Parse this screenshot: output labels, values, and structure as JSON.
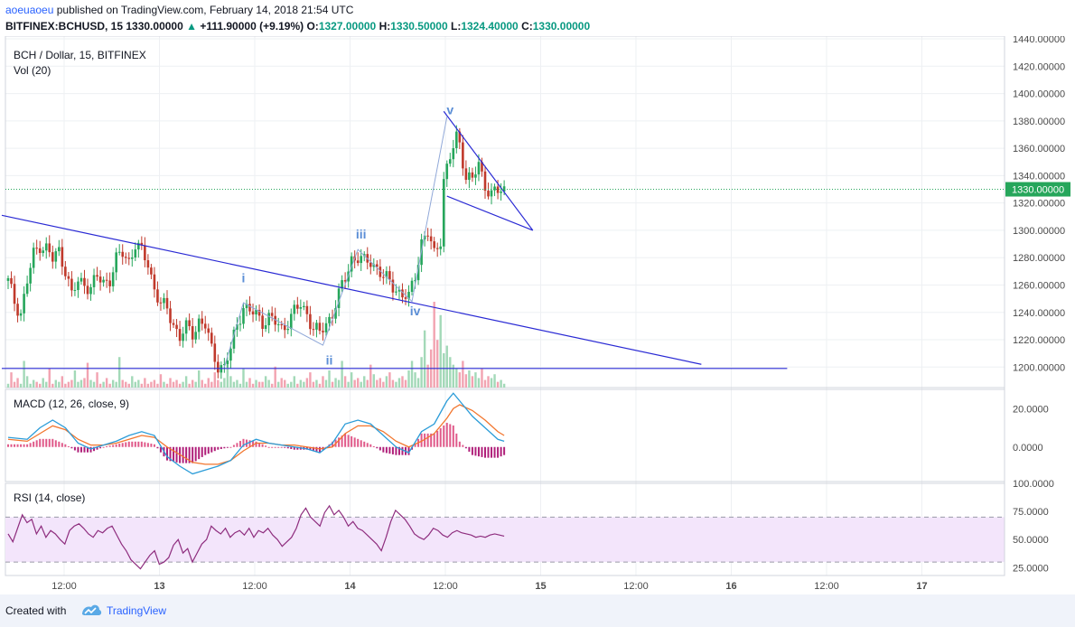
{
  "header": {
    "author": "aoeuaoeu",
    "published_text": "published on TradingView.com, February 14, 2018 21:54 UTC",
    "symbol": "BITFINEX:BCHUSD, 15",
    "last": "1330.00000",
    "change": "+111.90000 (+9.19%)",
    "open_label": "O:",
    "open": "1327.00000",
    "high_label": "H:",
    "high": "1330.50000",
    "low_label": "L:",
    "low": "1324.40000",
    "close_label": "C:",
    "close": "1330.00000"
  },
  "chart_data": {
    "type": "candlestick",
    "title": "BCH / Dollar, 15, BITFINEX",
    "volume_label": "Vol (20)",
    "price_axis": {
      "ticks": [
        "1440.00000",
        "1420.00000",
        "1400.00000",
        "1380.00000",
        "1360.00000",
        "1340.00000",
        "1320.00000",
        "1300.00000",
        "1280.00000",
        "1260.00000",
        "1240.00000",
        "1220.00000",
        "1200.00000"
      ],
      "range": [
        1185,
        1442
      ],
      "last_price_label": "1330.00000"
    },
    "x_axis": {
      "ticks": [
        "12:00",
        "13",
        "12:00",
        "14",
        "12:00",
        "15",
        "12:00",
        "16",
        "12:00",
        "17"
      ]
    },
    "price_path": [
      [
        0,
        1262
      ],
      [
        2,
        1248
      ],
      [
        4,
        1240
      ],
      [
        6,
        1262
      ],
      [
        8,
        1282
      ],
      [
        10,
        1290
      ],
      [
        12,
        1287
      ],
      [
        14,
        1278
      ],
      [
        16,
        1285
      ],
      [
        18,
        1272
      ],
      [
        20,
        1252
      ],
      [
        22,
        1262
      ],
      [
        24,
        1262
      ],
      [
        26,
        1258
      ],
      [
        28,
        1265
      ],
      [
        30,
        1262
      ],
      [
        32,
        1265
      ],
      [
        34,
        1278
      ],
      [
        36,
        1283
      ],
      [
        38,
        1278
      ],
      [
        40,
        1290
      ],
      [
        42,
        1283
      ],
      [
        44,
        1276
      ],
      [
        46,
        1258
      ],
      [
        48,
        1245
      ],
      [
        50,
        1242
      ],
      [
        52,
        1232
      ],
      [
        54,
        1222
      ],
      [
        56,
        1228
      ],
      [
        58,
        1225
      ],
      [
        60,
        1234
      ],
      [
        62,
        1230
      ],
      [
        64,
        1212
      ],
      [
        66,
        1202
      ],
      [
        68,
        1200
      ],
      [
        70,
        1212
      ],
      [
        72,
        1232
      ],
      [
        74,
        1245
      ],
      [
        76,
        1240
      ],
      [
        78,
        1238
      ],
      [
        80,
        1234
      ],
      [
        82,
        1236
      ],
      [
        84,
        1232
      ],
      [
        86,
        1228
      ],
      [
        88,
        1234
      ],
      [
        90,
        1240
      ],
      [
        92,
        1245
      ],
      [
        94,
        1240
      ],
      [
        96,
        1228
      ],
      [
        98,
        1224
      ],
      [
        100,
        1232
      ],
      [
        102,
        1240
      ],
      [
        104,
        1252
      ],
      [
        106,
        1265
      ],
      [
        108,
        1280
      ],
      [
        110,
        1280
      ],
      [
        112,
        1276
      ],
      [
        114,
        1278
      ],
      [
        116,
        1273
      ],
      [
        118,
        1265
      ],
      [
        120,
        1262
      ],
      [
        122,
        1258
      ],
      [
        124,
        1252
      ],
      [
        126,
        1250
      ],
      [
        128,
        1268
      ],
      [
        130,
        1292
      ],
      [
        132,
        1297
      ],
      [
        134,
        1282
      ],
      [
        136,
        1295
      ],
      [
        137,
        1338
      ],
      [
        139,
        1352
      ],
      [
        141,
        1368
      ],
      [
        142,
        1364
      ],
      [
        144,
        1340
      ],
      [
        146,
        1336
      ],
      [
        148,
        1348
      ],
      [
        150,
        1334
      ],
      [
        152,
        1326
      ],
      [
        154,
        1328
      ],
      [
        156,
        1330
      ]
    ],
    "volume_pattern": [
      2,
      8,
      3,
      5,
      2,
      14,
      6,
      2,
      4,
      3,
      2,
      5,
      3,
      10,
      2,
      4,
      3,
      6,
      2,
      3,
      4,
      9,
      3,
      4,
      5,
      13,
      4,
      3,
      8,
      2,
      3,
      5,
      2,
      4,
      3,
      16,
      4,
      3,
      2,
      6,
      3,
      4,
      2,
      5,
      2,
      3,
      4,
      2,
      7,
      3,
      2,
      5,
      3,
      4,
      2,
      3,
      6,
      2,
      4,
      3,
      9,
      4,
      2,
      5,
      3,
      8,
      4,
      3,
      5,
      14,
      6,
      3,
      4,
      2,
      10,
      3,
      5,
      2,
      4,
      3,
      3,
      6,
      4,
      2,
      11,
      3,
      5,
      4,
      2,
      3,
      6,
      2,
      4,
      3,
      5,
      8,
      3,
      4,
      2,
      6,
      4,
      9,
      3,
      5,
      4,
      14,
      6,
      3,
      8,
      4,
      5,
      3,
      6,
      4,
      12,
      7,
      4,
      5,
      3,
      6,
      8,
      4,
      3,
      5,
      6,
      4,
      9,
      14,
      8,
      5,
      16,
      30,
      12,
      20,
      45,
      25,
      38,
      18,
      22,
      16,
      12,
      10,
      8,
      14,
      7,
      9,
      6,
      8,
      5,
      10,
      4,
      6,
      5,
      7,
      3,
      4
    ],
    "annotations": [
      {
        "text": "i",
        "price": 1262,
        "bar": 74
      },
      {
        "text": "ii",
        "price": 1202,
        "bar": 101
      },
      {
        "text": "iii",
        "price": 1294,
        "bar": 111
      },
      {
        "text": "iv",
        "price": 1238,
        "bar": 128
      },
      {
        "text": "v",
        "price": 1385,
        "bar": 139
      }
    ],
    "trendlines": [
      {
        "from": [
          -2,
          1311
        ],
        "to": [
          218,
          1202
        ]
      },
      {
        "from": [
          -2,
          1199
        ],
        "to": [
          245,
          1199
        ]
      },
      {
        "from": [
          137,
          1387
        ],
        "to": [
          165,
          1300
        ]
      },
      {
        "from": [
          138,
          1325
        ],
        "to": [
          165,
          1300
        ]
      }
    ],
    "wave_path": [
      [
        68,
        1200
      ],
      [
        74,
        1247
      ],
      [
        99,
        1216
      ],
      [
        110,
        1286
      ],
      [
        127,
        1248
      ],
      [
        138,
        1383
      ]
    ],
    "macd": {
      "label": "MACD (12, 26, close, 9)",
      "ticks": [
        "20.0000",
        "0.0000"
      ],
      "range": [
        -18,
        30
      ],
      "macd_line": [
        [
          0,
          5
        ],
        [
          6,
          4
        ],
        [
          10,
          10
        ],
        [
          14,
          14
        ],
        [
          18,
          10
        ],
        [
          22,
          2
        ],
        [
          26,
          -1
        ],
        [
          30,
          1
        ],
        [
          34,
          3
        ],
        [
          38,
          6
        ],
        [
          42,
          8
        ],
        [
          46,
          6
        ],
        [
          50,
          -5
        ],
        [
          54,
          -10
        ],
        [
          58,
          -14
        ],
        [
          62,
          -12
        ],
        [
          66,
          -10
        ],
        [
          70,
          -7
        ],
        [
          74,
          1
        ],
        [
          78,
          4
        ],
        [
          82,
          2
        ],
        [
          86,
          1
        ],
        [
          90,
          0
        ],
        [
          94,
          -1
        ],
        [
          98,
          -3
        ],
        [
          102,
          2
        ],
        [
          106,
          12
        ],
        [
          110,
          14
        ],
        [
          114,
          12
        ],
        [
          118,
          6
        ],
        [
          122,
          0
        ],
        [
          126,
          -3
        ],
        [
          130,
          8
        ],
        [
          134,
          12
        ],
        [
          138,
          24
        ],
        [
          140,
          28
        ],
        [
          142,
          24
        ],
        [
          146,
          16
        ],
        [
          150,
          10
        ],
        [
          154,
          4
        ],
        [
          156,
          3
        ]
      ],
      "signal_line": [
        [
          0,
          4
        ],
        [
          6,
          3
        ],
        [
          10,
          7
        ],
        [
          14,
          11
        ],
        [
          18,
          9
        ],
        [
          22,
          4
        ],
        [
          26,
          1
        ],
        [
          30,
          1
        ],
        [
          34,
          2
        ],
        [
          38,
          4
        ],
        [
          42,
          6
        ],
        [
          46,
          5
        ],
        [
          50,
          0
        ],
        [
          54,
          -4
        ],
        [
          58,
          -8
        ],
        [
          62,
          -9
        ],
        [
          66,
          -9
        ],
        [
          70,
          -7
        ],
        [
          74,
          -2
        ],
        [
          78,
          2
        ],
        [
          82,
          2
        ],
        [
          86,
          1
        ],
        [
          90,
          1
        ],
        [
          94,
          0
        ],
        [
          98,
          -1
        ],
        [
          102,
          0
        ],
        [
          106,
          7
        ],
        [
          110,
          11
        ],
        [
          114,
          11
        ],
        [
          118,
          8
        ],
        [
          122,
          3
        ],
        [
          126,
          0
        ],
        [
          130,
          3
        ],
        [
          134,
          7
        ],
        [
          138,
          15
        ],
        [
          140,
          20
        ],
        [
          142,
          22
        ],
        [
          146,
          19
        ],
        [
          150,
          14
        ],
        [
          154,
          8
        ],
        [
          156,
          6
        ]
      ]
    },
    "rsi": {
      "label": "RSI (14, close)",
      "ticks": [
        "100.0000",
        "75.0000",
        "50.0000",
        "25.0000"
      ],
      "range": [
        18,
        100
      ],
      "band": [
        30,
        70
      ],
      "values": [
        55,
        48,
        60,
        72,
        65,
        68,
        55,
        62,
        52,
        58,
        55,
        50,
        46,
        58,
        62,
        64,
        60,
        55,
        52,
        58,
        56,
        60,
        62,
        54,
        46,
        40,
        32,
        28,
        24,
        30,
        36,
        40,
        28,
        30,
        34,
        45,
        50,
        38,
        42,
        30,
        38,
        46,
        50,
        62,
        58,
        55,
        60,
        52,
        56,
        58,
        54,
        60,
        52,
        58,
        56,
        60,
        54,
        50,
        44,
        48,
        52,
        60,
        72,
        78,
        70,
        66,
        62,
        74,
        80,
        72,
        76,
        70,
        62,
        66,
        60,
        58,
        54,
        50,
        46,
        40,
        52,
        66,
        76,
        72,
        68,
        62,
        55,
        52,
        50,
        54,
        60,
        58,
        54,
        52,
        56,
        58,
        56,
        55,
        54,
        52,
        53,
        52,
        54,
        55,
        54,
        53
      ]
    }
  }
}
